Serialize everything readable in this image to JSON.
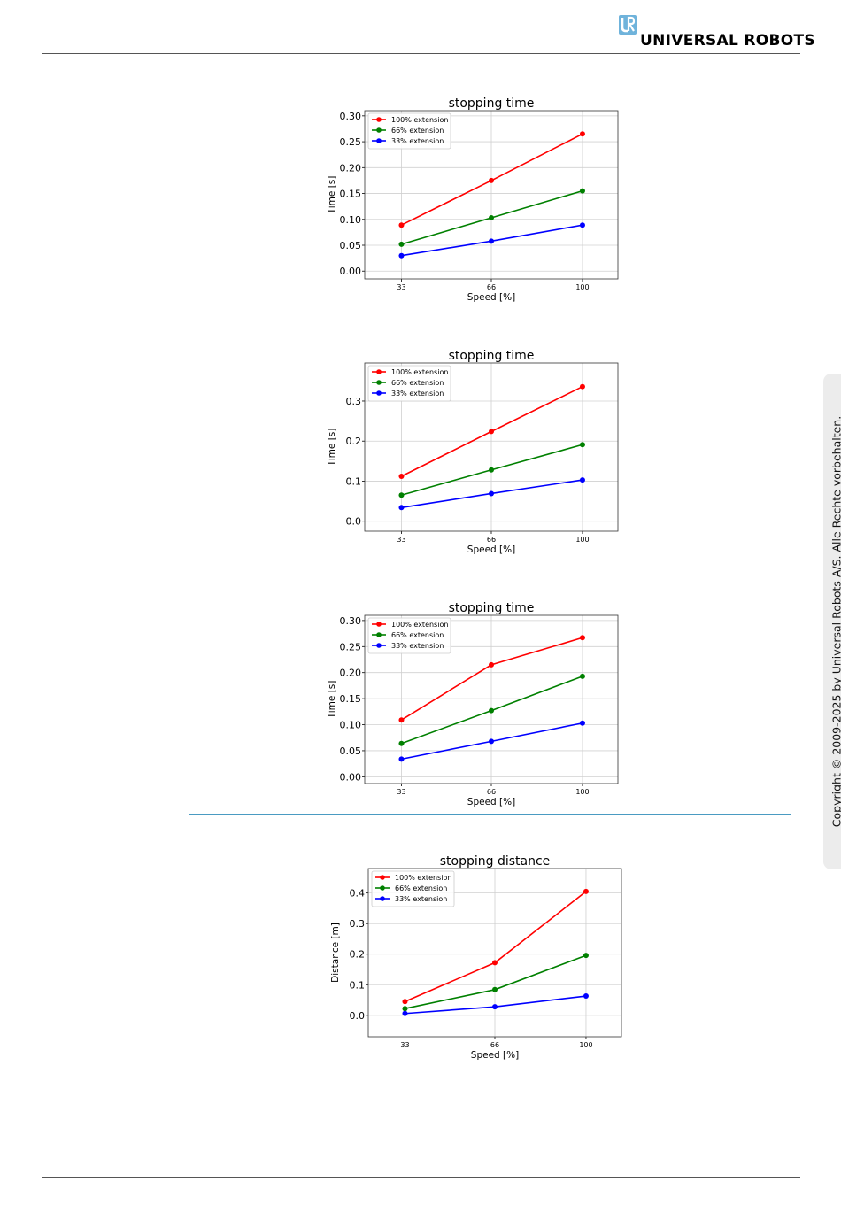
{
  "header": {
    "brand": "UNIVERSAL ROBOTS",
    "logo_icon": "ur-logo-icon"
  },
  "sidebar": {
    "copyright": "Copyright © 2009-2025 by Universal Robots A/S. Alle Rechte vorbehalten."
  },
  "colors": {
    "series_100": "#ff0000",
    "series_66": "#008000",
    "series_33": "#0000ff",
    "divider": "#4a9bc2"
  },
  "chart_data": [
    {
      "type": "line",
      "title": "stopping time",
      "xlabel": "Speed [%]",
      "ylabel": "Time [s]",
      "categories": [
        33,
        66,
        100
      ],
      "yticks": [
        "0.00",
        "0.05",
        "0.10",
        "0.15",
        "0.20",
        "0.25",
        "0.30"
      ],
      "ylim": [
        -0.015,
        0.31
      ],
      "grid": true,
      "legend": "top-left",
      "series": [
        {
          "name": "100% extension",
          "values": [
            0.089,
            0.175,
            0.265
          ]
        },
        {
          "name": "66% extension",
          "values": [
            0.052,
            0.103,
            0.155
          ]
        },
        {
          "name": "33% extension",
          "values": [
            0.03,
            0.058,
            0.089
          ]
        }
      ]
    },
    {
      "type": "line",
      "title": "stopping time",
      "xlabel": "Speed [%]",
      "ylabel": "Time [s]",
      "categories": [
        33,
        66,
        100
      ],
      "yticks": [
        "0.0",
        "0.1",
        "0.2",
        "0.3"
      ],
      "ylim": [
        -0.025,
        0.395
      ],
      "grid": true,
      "legend": "top-left",
      "series": [
        {
          "name": "100% extension",
          "values": [
            0.112,
            0.224,
            0.336
          ]
        },
        {
          "name": "66% extension",
          "values": [
            0.065,
            0.128,
            0.191
          ]
        },
        {
          "name": "33% extension",
          "values": [
            0.034,
            0.069,
            0.103
          ]
        }
      ]
    },
    {
      "type": "line",
      "title": "stopping time",
      "xlabel": "Speed [%]",
      "ylabel": "Time [s]",
      "categories": [
        33,
        66,
        100
      ],
      "yticks": [
        "0.00",
        "0.05",
        "0.10",
        "0.15",
        "0.20",
        "0.25",
        "0.30"
      ],
      "ylim": [
        -0.013,
        0.31
      ],
      "grid": true,
      "legend": "top-left",
      "series": [
        {
          "name": "100% extension",
          "values": [
            0.109,
            0.215,
            0.267
          ]
        },
        {
          "name": "66% extension",
          "values": [
            0.064,
            0.127,
            0.193
          ]
        },
        {
          "name": "33% extension",
          "values": [
            0.034,
            0.068,
            0.103
          ]
        }
      ]
    },
    {
      "type": "line",
      "title": "stopping distance",
      "xlabel": "Speed [%]",
      "ylabel": "Distance [m]",
      "categories": [
        33,
        66,
        100
      ],
      "yticks": [
        "0.0",
        "0.1",
        "0.2",
        "0.3",
        "0.4"
      ],
      "ylim": [
        -0.07,
        0.48
      ],
      "grid": true,
      "legend": "top-left",
      "series": [
        {
          "name": "100% extension",
          "values": [
            0.045,
            0.172,
            0.405
          ]
        },
        {
          "name": "66% extension",
          "values": [
            0.022,
            0.084,
            0.196
          ]
        },
        {
          "name": "33% extension",
          "values": [
            0.006,
            0.028,
            0.063
          ]
        }
      ]
    }
  ]
}
